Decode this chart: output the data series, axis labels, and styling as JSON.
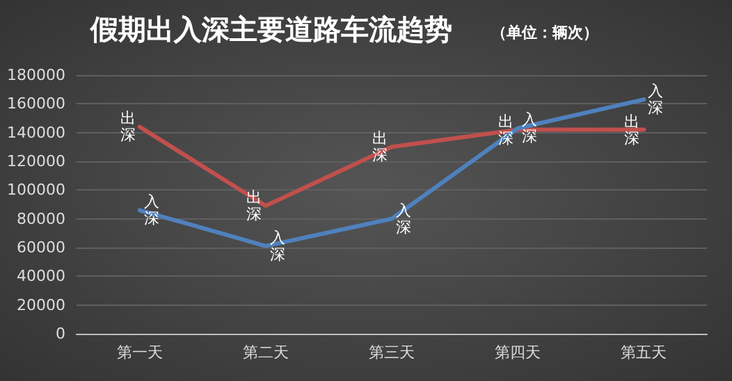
{
  "chart_data": {
    "type": "line",
    "title": "假期出入深主要道路车流趋势",
    "subtitle": "（单位：辆次）",
    "categories": [
      "第一天",
      "第二天",
      "第三天",
      "第四天",
      "第五天"
    ],
    "series": [
      {
        "name": "出深",
        "color": "#c0504d",
        "values": [
          144000,
          89000,
          130000,
          142000,
          142000
        ]
      },
      {
        "name": "入深",
        "color": "#4f81bd",
        "values": [
          86000,
          61000,
          80000,
          143000,
          163000
        ]
      }
    ],
    "ylim": [
      0,
      180000
    ],
    "yticks": [
      0,
      20000,
      40000,
      60000,
      80000,
      100000,
      120000,
      140000,
      160000,
      180000
    ],
    "grid": "y",
    "legend": false,
    "marker": "none",
    "line_style": "solid"
  }
}
